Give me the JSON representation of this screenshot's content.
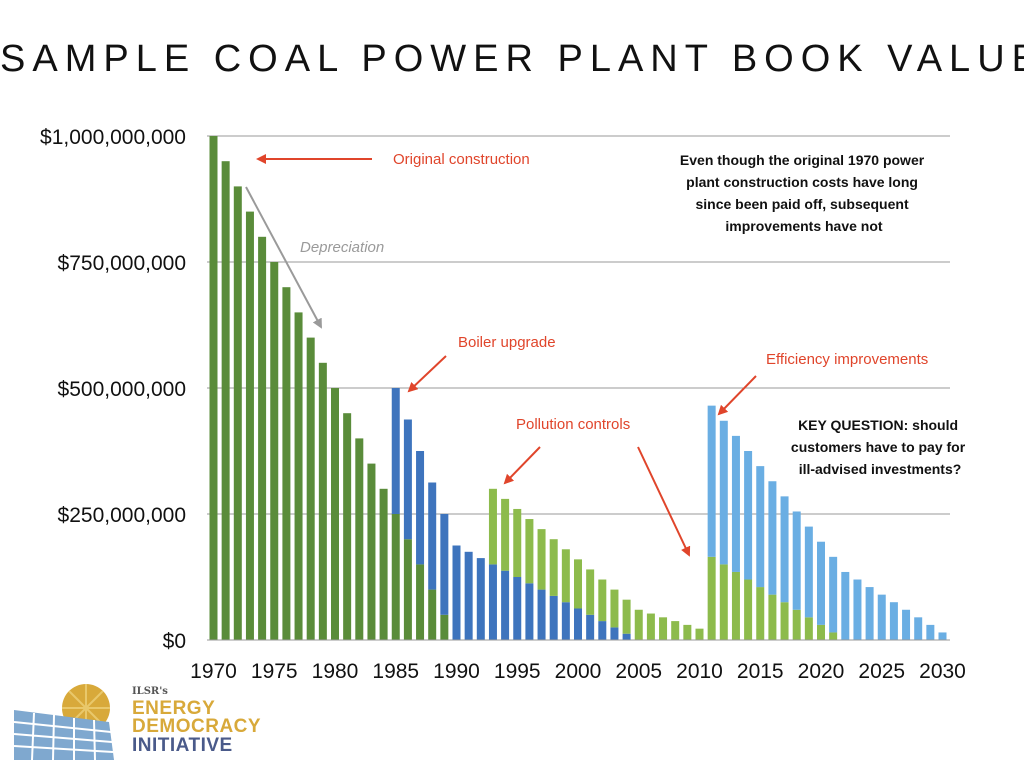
{
  "title": "SAMPLE COAL POWER PLANT BOOK VALUE",
  "chart_data": {
    "type": "bar",
    "stacked": true,
    "title": "SAMPLE COAL POWER PLANT BOOK VALUE",
    "xlim": [
      1970,
      2031
    ],
    "ylim": [
      0,
      1000000000
    ],
    "grid": true,
    "x_ticks": [
      "1970",
      "1975",
      "1980",
      "1985",
      "1990",
      "1995",
      "2000",
      "2005",
      "2010",
      "2015",
      "2020",
      "2025",
      "2030"
    ],
    "y_ticks": [
      {
        "value": 0,
        "label": "$0"
      },
      {
        "value": 250000000,
        "label": "$250,000,000"
      },
      {
        "value": 500000000,
        "label": "$500,000,000"
      },
      {
        "value": 750000000,
        "label": "$750,000,000"
      },
      {
        "value": 1000000000,
        "label": "$1,000,000,000"
      }
    ],
    "series": [
      {
        "key": "original",
        "color": "#5a8c3a",
        "points": [
          {
            "x": 1970,
            "y": 1000000000
          },
          {
            "x": 1971,
            "y": 950000000
          },
          {
            "x": 1972,
            "y": 900000000
          },
          {
            "x": 1973,
            "y": 850000000
          },
          {
            "x": 1974,
            "y": 800000000
          },
          {
            "x": 1975,
            "y": 750000000
          },
          {
            "x": 1976,
            "y": 700000000
          },
          {
            "x": 1977,
            "y": 650000000
          },
          {
            "x": 1978,
            "y": 600000000
          },
          {
            "x": 1979,
            "y": 550000000
          },
          {
            "x": 1980,
            "y": 500000000
          },
          {
            "x": 1981,
            "y": 450000000
          },
          {
            "x": 1982,
            "y": 400000000
          },
          {
            "x": 1983,
            "y": 350000000
          },
          {
            "x": 1984,
            "y": 300000000
          },
          {
            "x": 1985,
            "y": 250000000
          },
          {
            "x": 1986,
            "y": 200000000
          },
          {
            "x": 1987,
            "y": 150000000
          },
          {
            "x": 1988,
            "y": 100000000
          },
          {
            "x": 1989,
            "y": 50000000
          }
        ]
      },
      {
        "key": "boiler",
        "color": "#3e74bd",
        "points": [
          {
            "x": 1985,
            "y": 250000000
          },
          {
            "x": 1986,
            "y": 237500000
          },
          {
            "x": 1987,
            "y": 225000000
          },
          {
            "x": 1988,
            "y": 212500000
          },
          {
            "x": 1989,
            "y": 200000000
          },
          {
            "x": 1990,
            "y": 187500000
          },
          {
            "x": 1991,
            "y": 175000000
          },
          {
            "x": 1992,
            "y": 162500000
          },
          {
            "x": 1993,
            "y": 150000000
          },
          {
            "x": 1994,
            "y": 137500000
          },
          {
            "x": 1995,
            "y": 125000000
          },
          {
            "x": 1996,
            "y": 112500000
          },
          {
            "x": 1997,
            "y": 100000000
          },
          {
            "x": 1998,
            "y": 87500000
          },
          {
            "x": 1999,
            "y": 75000000
          },
          {
            "x": 2000,
            "y": 62500000
          },
          {
            "x": 2001,
            "y": 50000000
          },
          {
            "x": 2002,
            "y": 37500000
          },
          {
            "x": 2003,
            "y": 25000000
          },
          {
            "x": 2004,
            "y": 12500000
          }
        ]
      },
      {
        "key": "pollution",
        "color": "#8dbb4c",
        "points": [
          {
            "x": 1993,
            "y": 150000000
          },
          {
            "x": 1994,
            "y": 142500000
          },
          {
            "x": 1995,
            "y": 135000000
          },
          {
            "x": 1996,
            "y": 127500000
          },
          {
            "x": 1997,
            "y": 120000000
          },
          {
            "x": 1998,
            "y": 112500000
          },
          {
            "x": 1999,
            "y": 105000000
          },
          {
            "x": 2000,
            "y": 97500000
          },
          {
            "x": 2001,
            "y": 90000000
          },
          {
            "x": 2002,
            "y": 82500000
          },
          {
            "x": 2003,
            "y": 75000000
          },
          {
            "x": 2004,
            "y": 67500000
          },
          {
            "x": 2005,
            "y": 60000000
          },
          {
            "x": 2006,
            "y": 52500000
          },
          {
            "x": 2007,
            "y": 45000000
          },
          {
            "x": 2008,
            "y": 37500000
          },
          {
            "x": 2009,
            "y": 30000000
          },
          {
            "x": 2010,
            "y": 22500000
          },
          {
            "x": 2011,
            "y": 165000000
          },
          {
            "x": 2012,
            "y": 150000000
          },
          {
            "x": 2013,
            "y": 135000000
          },
          {
            "x": 2014,
            "y": 120000000
          },
          {
            "x": 2015,
            "y": 105000000
          },
          {
            "x": 2016,
            "y": 90000000
          },
          {
            "x": 2017,
            "y": 75000000
          },
          {
            "x": 2018,
            "y": 60000000
          },
          {
            "x": 2019,
            "y": 45000000
          },
          {
            "x": 2020,
            "y": 30000000
          },
          {
            "x": 2021,
            "y": 15000000
          }
        ]
      },
      {
        "key": "efficiency",
        "color": "#6aaee3",
        "points": [
          {
            "x": 2011,
            "y": 300000000
          },
          {
            "x": 2012,
            "y": 285000000
          },
          {
            "x": 2013,
            "y": 270000000
          },
          {
            "x": 2014,
            "y": 255000000
          },
          {
            "x": 2015,
            "y": 240000000
          },
          {
            "x": 2016,
            "y": 225000000
          },
          {
            "x": 2017,
            "y": 210000000
          },
          {
            "x": 2018,
            "y": 195000000
          },
          {
            "x": 2019,
            "y": 180000000
          },
          {
            "x": 2020,
            "y": 165000000
          },
          {
            "x": 2021,
            "y": 150000000
          },
          {
            "x": 2022,
            "y": 135000000
          },
          {
            "x": 2023,
            "y": 120000000
          },
          {
            "x": 2024,
            "y": 105000000
          },
          {
            "x": 2025,
            "y": 90000000
          },
          {
            "x": 2026,
            "y": 75000000
          },
          {
            "x": 2027,
            "y": 60000000
          },
          {
            "x": 2028,
            "y": 45000000
          },
          {
            "x": 2029,
            "y": 30000000
          },
          {
            "x": 2030,
            "y": 15000000
          }
        ]
      }
    ],
    "annotations": {
      "original_construction": "Original construction",
      "depreciation": "Depreciation",
      "boiler_upgrade": "Boiler upgrade",
      "pollution_controls": "Pollution controls",
      "efficiency_improvements": "Efficiency improvements",
      "note_lines": [
        "Even though the original 1970 power",
        "plant construction costs have long",
        "since been paid off, subsequent",
        "improvements have not"
      ],
      "question_lines": [
        "KEY QUESTION: should",
        "customers have to pay for",
        "ill-advised investments?"
      ]
    },
    "annotation_colors": {
      "red": "#e0452b",
      "gray": "#9a9a9a"
    }
  },
  "logo": {
    "small": "ILSR's",
    "line1": "ENERGY",
    "line2": "DEMOCRACY",
    "line3": "INITIATIVE",
    "icon": "sun-over-solar-panels-icon",
    "colors": {
      "gold": "#d8a93a",
      "navy": "#4a5a8a",
      "panel": "#7fa8cf"
    }
  }
}
